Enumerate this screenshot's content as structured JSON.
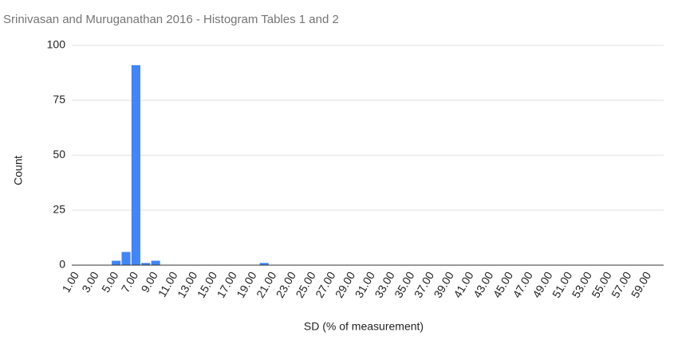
{
  "chart_data": {
    "type": "bar",
    "title": "Srinivasan and Muruganathan 2016  - Histogram Tables 1 and 2",
    "x_label": "SD (% of measurement)",
    "y_label": "Count",
    "categories": [
      "1.00",
      null,
      "3.00",
      null,
      "5.00",
      null,
      "7.00",
      null,
      "9.00",
      null,
      "11.00",
      null,
      "13.00",
      null,
      "15.00",
      null,
      "17.00",
      null,
      "19.00",
      null,
      "21.00",
      null,
      "23.00",
      null,
      "25.00",
      null,
      "27.00",
      null,
      "29.00",
      null,
      "31.00",
      null,
      "33.00",
      null,
      "35.00",
      null,
      "37.00",
      null,
      "39.00",
      null,
      "41.00",
      null,
      "43.00",
      null,
      "45.00",
      null,
      "47.00",
      null,
      "49.00",
      null,
      "51.00",
      null,
      "53.00",
      null,
      "55.00",
      null,
      "57.00",
      null,
      "59.00",
      null
    ],
    "values": [
      0,
      0,
      0,
      0,
      2,
      6,
      91,
      1,
      2,
      0,
      0,
      0,
      0,
      0,
      0,
      0,
      0,
      0,
      0,
      1,
      0,
      0,
      0,
      0,
      0,
      0,
      0,
      0,
      0,
      0,
      0,
      0,
      0,
      0,
      0,
      0,
      0,
      0,
      0,
      0,
      0,
      0,
      0,
      0,
      0,
      0,
      0,
      0,
      0,
      0,
      0,
      0,
      0,
      0,
      0,
      0,
      0,
      0,
      0,
      0
    ],
    "color": "#4285f4",
    "ylim": [
      0,
      100
    ],
    "yticks": [
      0,
      25,
      50,
      75,
      100
    ],
    "grid": true
  }
}
